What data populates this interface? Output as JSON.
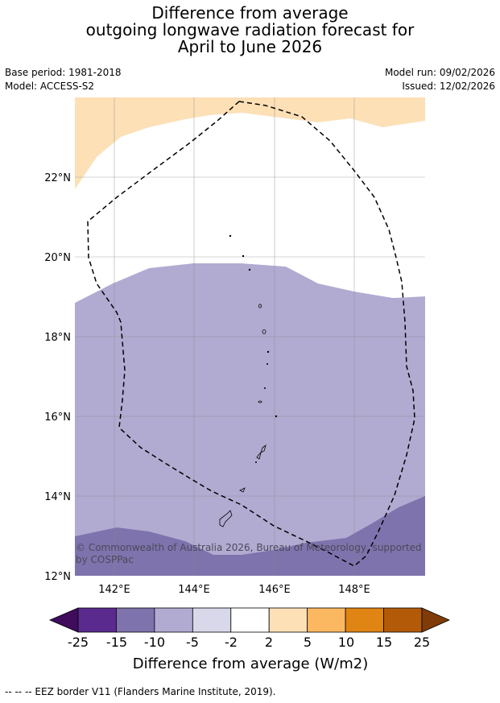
{
  "title": {
    "line1": "Difference from average",
    "line2": "outgoing longwave radiation forecast for",
    "line3": "April to June 2026"
  },
  "meta": {
    "base_period": "Base period: 1981-2018",
    "model": "Model: ACCESS-S2",
    "model_run": "Model run: 09/02/2026",
    "issued": "Issued: 12/02/2026"
  },
  "map": {
    "lat_labels": [
      "22°N",
      "20°N",
      "18°N",
      "16°N",
      "14°N",
      "12°N"
    ],
    "lon_labels": [
      "142°E",
      "144°E",
      "146°E",
      "148°E"
    ],
    "copyright_line1": "© Commonwealth of Australia 2026, Bureau of Meteorology, supported",
    "copyright_line2": "by COSPPac"
  },
  "colorbar": {
    "tick_labels": [
      "-25",
      "-15",
      "-10",
      "-5",
      "-2",
      "2",
      "5",
      "10",
      "15",
      "25"
    ],
    "colors": [
      "#3f0d5c",
      "#5a2a8f",
      "#7f73ad",
      "#b1abd1",
      "#d8d8ea",
      "#ffffff",
      "#fde0b6",
      "#fbb861",
      "#e08414",
      "#b35a08",
      "#7f3b08"
    ],
    "label": "Difference from average (W/m2)"
  },
  "footer": {
    "legend_text": "--  --  -- EEZ border V11 (Flanders Marine Institute, 2019)."
  }
}
